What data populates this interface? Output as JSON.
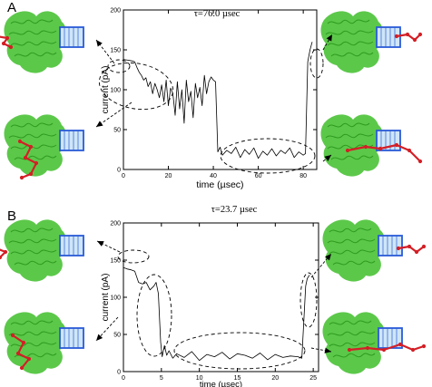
{
  "colors": {
    "protein": "#3ab52a",
    "pore_ring": "#2a5bd7",
    "polymer": "#d41f26",
    "trace": "#000000"
  },
  "icons": [
    "protein-complex-icon",
    "pore-channel-icon",
    "polymer-chain-icon"
  ],
  "panels": [
    {
      "letter": "A",
      "tau": "τ=76.0 µsec",
      "xlabel": "time (µsec)",
      "ylabel": "current (pA)",
      "xticks": [
        "0",
        "20",
        "40",
        "60",
        "80"
      ],
      "yticks": [
        "0",
        "50",
        "100",
        "150",
        "200"
      ]
    },
    {
      "letter": "B",
      "tau": "τ=23.7 µsec",
      "xlabel": "time (µsec)",
      "ylabel": "current (pA)",
      "xticks": [
        "0",
        "5",
        "10",
        "15",
        "20",
        "25"
      ],
      "yticks": [
        "0",
        "50",
        "100",
        "150",
        "200"
      ]
    }
  ],
  "chart_data": [
    {
      "type": "line",
      "title": "τ=76.0 µsec",
      "xlabel": "time (µsec)",
      "ylabel": "current (pA)",
      "xlim": [
        0,
        86
      ],
      "ylim": [
        0,
        200
      ],
      "grid": false,
      "x": [
        0,
        2,
        4,
        5,
        6,
        7,
        8,
        9,
        10,
        11,
        12,
        13,
        14,
        15,
        16,
        17,
        18,
        19,
        20,
        21,
        22,
        23,
        24,
        25,
        26,
        27,
        28,
        29,
        30,
        31,
        32,
        33,
        34,
        35,
        36,
        37,
        38,
        39,
        40,
        41,
        42,
        43,
        44,
        46,
        48,
        50,
        52,
        54,
        56,
        58,
        60,
        62,
        64,
        66,
        68,
        70,
        72,
        74,
        76,
        78,
        80,
        81,
        82,
        83,
        84
      ],
      "values": [
        138,
        137,
        136,
        135,
        128,
        122,
        118,
        112,
        115,
        104,
        110,
        95,
        108,
        100,
        90,
        106,
        85,
        112,
        80,
        102,
        95,
        68,
        110,
        76,
        100,
        58,
        112,
        85,
        98,
        65,
        108,
        90,
        103,
        80,
        118,
        95,
        110,
        116,
        112,
        110,
        22,
        28,
        18,
        24,
        20,
        28,
        15,
        25,
        19,
        27,
        14,
        23,
        18,
        26,
        17,
        24,
        20,
        27,
        15,
        22,
        18,
        20,
        135,
        150,
        160
      ]
    },
    {
      "type": "line",
      "title": "τ=23.7 µsec",
      "xlabel": "time (µsec)",
      "ylabel": "current (pA)",
      "xlim": [
        0,
        25.7
      ],
      "ylim": [
        0,
        200
      ],
      "grid": false,
      "x": [
        0,
        0.5,
        1,
        1.5,
        2,
        2.5,
        3,
        3.5,
        4,
        4.3,
        4.6,
        4.9,
        5.1,
        5.4,
        5.7,
        6,
        6.5,
        7,
        8,
        9,
        10,
        11,
        12,
        13,
        14,
        15,
        16,
        17,
        18,
        19,
        20,
        21,
        22,
        23,
        23.5,
        24,
        24.2,
        24.5
      ],
      "values": [
        140,
        138,
        137,
        135,
        120,
        118,
        120,
        110,
        115,
        120,
        105,
        40,
        20,
        35,
        22,
        28,
        18,
        24,
        19,
        27,
        15,
        23,
        20,
        26,
        17,
        24,
        22,
        18,
        25,
        16,
        23,
        19,
        21,
        20,
        18,
        115,
        125,
        130
      ]
    }
  ]
}
